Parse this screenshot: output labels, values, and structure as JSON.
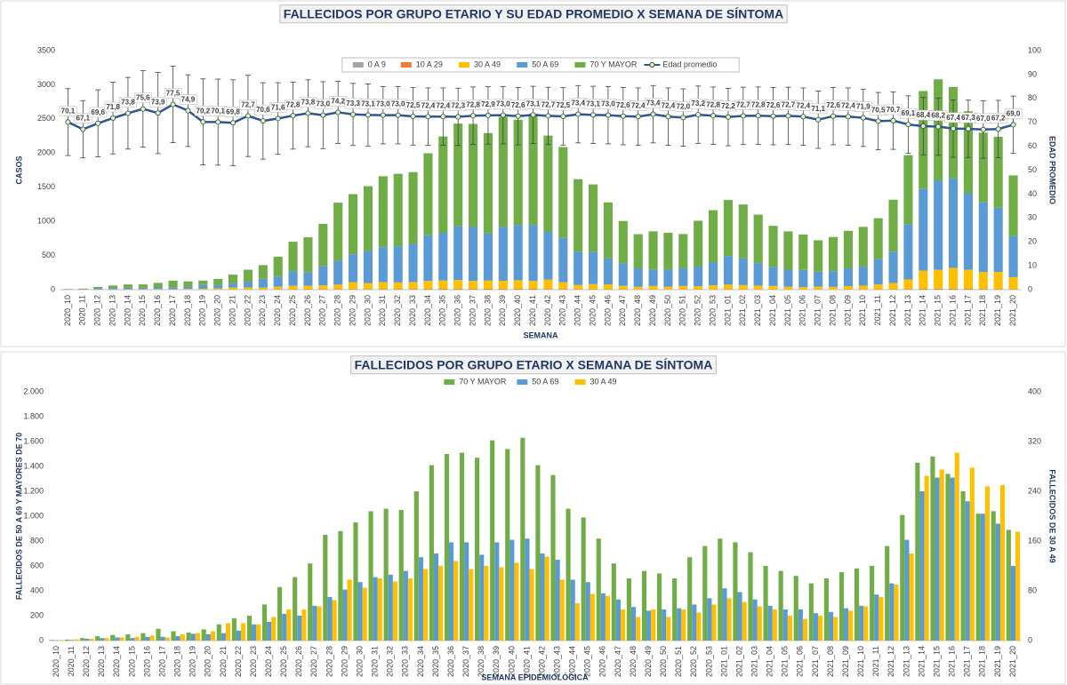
{
  "chart_data": [
    {
      "type": "bar",
      "stacked": true,
      "title": "FALLECIDOS POR GRUPO ETARIO Y SU EDAD PROMEDIO X SEMANA DE SÍNTOMA",
      "ylabel": "CASOS",
      "y2label": "EDAD PROMEDIO",
      "xlabel": "SEMANA",
      "legend": "top",
      "grid": false,
      "categories": [
        "2020_10",
        "2020_11",
        "2020_12",
        "2020_13",
        "2020_14",
        "2020_15",
        "2020_16",
        "2020_17",
        "2020_18",
        "2020_19",
        "2020_20",
        "2020_21",
        "2020_22",
        "2020_23",
        "2020_24",
        "2020_25",
        "2020_26",
        "2020_27",
        "2020_28",
        "2020_29",
        "2020_30",
        "2020_31",
        "2020_32",
        "2020_33",
        "2020_34",
        "2020_35",
        "2020_36",
        "2020_37",
        "2020_38",
        "2020_39",
        "2020_40",
        "2020_41",
        "2020_42",
        "2020_43",
        "2020_44",
        "2020_45",
        "2020_46",
        "2020_47",
        "2020_48",
        "2020_49",
        "2020_50",
        "2020_51",
        "2020_52",
        "2020_53",
        "2021_01",
        "2021_02",
        "2021_03",
        "2021_04",
        "2021_05",
        "2021_06",
        "2021_07",
        "2021_08",
        "2021_09",
        "2021_10",
        "2021_11",
        "2021_12",
        "2021_13",
        "2021_14",
        "2021_15",
        "2021_16",
        "2021_17",
        "2021_18",
        "2021_19",
        "2021_20"
      ],
      "ylim": [
        0,
        3500
      ],
      "yticks": [
        0,
        500,
        1000,
        1500,
        2000,
        2500,
        3000,
        3500
      ],
      "y2lim": [
        0,
        100
      ],
      "y2ticks": [
        0,
        10,
        20,
        30,
        40,
        50,
        60,
        70,
        80,
        90,
        100
      ],
      "series": [
        {
          "name": "0 A 9",
          "color": "#a5a5a5",
          "values": [
            0,
            0,
            0,
            0,
            0,
            0,
            0,
            0,
            0,
            0,
            0,
            0,
            1,
            0,
            1,
            1,
            1,
            1,
            1,
            2,
            1,
            1,
            1,
            1,
            1,
            1,
            2,
            1,
            1,
            1,
            1,
            1,
            1,
            1,
            1,
            0,
            0,
            1,
            0,
            0,
            1,
            0,
            0,
            1,
            0,
            0,
            0,
            0,
            0,
            0,
            1,
            0,
            0,
            0,
            1,
            1,
            1,
            2,
            2,
            2,
            1,
            1,
            1,
            1
          ]
        },
        {
          "name": "10 A 29",
          "color": "#ed7d31",
          "values": [
            0,
            0,
            1,
            1,
            1,
            1,
            1,
            1,
            1,
            1,
            2,
            2,
            3,
            3,
            4,
            6,
            6,
            7,
            8,
            9,
            9,
            10,
            10,
            10,
            11,
            12,
            12,
            11,
            12,
            11,
            12,
            12,
            10,
            9,
            7,
            6,
            5,
            4,
            4,
            4,
            3,
            4,
            4,
            4,
            5,
            5,
            4,
            4,
            3,
            3,
            3,
            3,
            4,
            4,
            5,
            6,
            9,
            12,
            13,
            14,
            12,
            10,
            9,
            7
          ]
        },
        {
          "name": "30 A 49",
          "color": "#ffc000",
          "values": [
            1,
            2,
            3,
            4,
            5,
            6,
            8,
            5,
            10,
            12,
            15,
            28,
            28,
            26,
            38,
            50,
            50,
            55,
            65,
            98,
            85,
            100,
            95,
            100,
            115,
            120,
            128,
            115,
            120,
            118,
            125,
            115,
            135,
            98,
            60,
            75,
            72,
            50,
            38,
            50,
            38,
            50,
            45,
            58,
            68,
            62,
            55,
            50,
            40,
            35,
            40,
            38,
            48,
            55,
            70,
            90,
            140,
            265,
            275,
            302,
            278,
            248,
            250,
            175
          ]
        },
        {
          "name": "50 A 69",
          "color": "#5b9bd5",
          "values": [
            3,
            5,
            15,
            20,
            25,
            20,
            30,
            30,
            35,
            55,
            50,
            60,
            80,
            130,
            150,
            215,
            200,
            280,
            350,
            410,
            470,
            510,
            530,
            560,
            670,
            700,
            790,
            790,
            690,
            790,
            810,
            820,
            700,
            650,
            490,
            470,
            380,
            330,
            270,
            240,
            250,
            260,
            290,
            340,
            420,
            390,
            330,
            280,
            250,
            250,
            220,
            230,
            260,
            280,
            370,
            460,
            810,
            1200,
            1310,
            1310,
            1120,
            1020,
            940,
            600
          ]
        },
        {
          "name": "70 Y MAYOR",
          "color": "#70ad47",
          "values": [
            5,
            8,
            20,
            35,
            45,
            50,
            60,
            95,
            75,
            65,
            90,
            130,
            180,
            200,
            290,
            430,
            510,
            620,
            850,
            880,
            950,
            1040,
            1060,
            1050,
            1200,
            1410,
            1500,
            1510,
            1470,
            1610,
            1540,
            1630,
            1410,
            1330,
            1060,
            990,
            820,
            620,
            500,
            560,
            540,
            500,
            670,
            760,
            820,
            790,
            710,
            600,
            560,
            520,
            460,
            500,
            550,
            580,
            600,
            760,
            1010,
            1430,
            1480,
            1340,
            1200,
            1020,
            1040,
            890
          ]
        },
        {
          "name": "Edad promedio",
          "type": "line",
          "axis": "y2",
          "color": "#2f5597",
          "values": [
            70.1,
            67.1,
            69.6,
            71.8,
            73.8,
            75.6,
            73.9,
            77.5,
            74.9,
            70.2,
            70.1,
            69.8,
            72.7,
            70.6,
            71.6,
            72.8,
            73.8,
            73.0,
            74.2,
            73.3,
            73.1,
            73.0,
            73.0,
            72.5,
            72.4,
            72.4,
            72.3,
            72.8,
            72.9,
            73.0,
            72.6,
            73.1,
            72.7,
            72.5,
            73.4,
            73.1,
            73.0,
            72.6,
            72.4,
            73.4,
            72.4,
            72.0,
            73.2,
            72.8,
            72.2,
            72.7,
            72.8,
            72.6,
            72.7,
            72.4,
            71.1,
            72.6,
            72.4,
            71.9,
            70.5,
            70.7,
            69.1,
            68.4,
            68.2,
            67.4,
            67.3,
            67.0,
            67.2,
            69.0
          ],
          "value_labels": [
            "70,1",
            "67,1",
            "69,6",
            "71,8",
            "73,8",
            "75,6",
            "73,9",
            "77,5",
            "74,9",
            "70,2",
            "70,1",
            "69,8",
            "72,7",
            "70,6",
            "71,6",
            "72,8",
            "73,8",
            "73,0",
            "74,2",
            "73,3",
            "73,1",
            "73,0",
            "73,0",
            "72,5",
            "72,4",
            "72,4",
            "72,3",
            "72,8",
            "72,9",
            "73,0",
            "72,6",
            "73,1",
            "72,7",
            "72,5",
            "73,4",
            "73,1",
            "73,0",
            "72,6",
            "72,4",
            "73,4",
            "72,4",
            "72,0",
            "73,2",
            "72,8",
            "72,2",
            "72,7",
            "72,8",
            "72,6",
            "72,7",
            "72,4",
            "71,1",
            "72,6",
            "72,4",
            "71,9",
            "70,5",
            "70,7",
            "69,1",
            "68,4",
            "68,2",
            "67,4",
            "67,3",
            "67,0",
            "67,2",
            "69,0"
          ],
          "errors": [
            14,
            12,
            14,
            15,
            15,
            16,
            17,
            16,
            15,
            18,
            18,
            18,
            17,
            16,
            15,
            14,
            14,
            14,
            13,
            13,
            13,
            12,
            12,
            12,
            12,
            12,
            12,
            12,
            12,
            12,
            12,
            12,
            12,
            12,
            12,
            12,
            12,
            12,
            12,
            12,
            12,
            12,
            12,
            12,
            12,
            12,
            12,
            12,
            12,
            12,
            12,
            12,
            12,
            12,
            12,
            12,
            12,
            12,
            12,
            12,
            12,
            12,
            12,
            12
          ]
        }
      ]
    },
    {
      "type": "bar",
      "stacked": false,
      "title": "FALLECIDOS POR GRUPO ETARIO X SEMANA DE SÍNTOMA",
      "ylabel": "FALLECIDOS DE 50 A 69 Y MAYORES DE 70",
      "y2label": "FALLECIDOS DE 30 A 49",
      "xlabel": "SEMANA EPIDEMIOLÓGICA",
      "legend": "top",
      "grid": false,
      "categories": [
        "2020_10",
        "2020_11",
        "2020_12",
        "2020_13",
        "2020_14",
        "2020_15",
        "2020_16",
        "2020_17",
        "2020_18",
        "2020_19",
        "2020_20",
        "2020_21",
        "2020_22",
        "2020_23",
        "2020_24",
        "2020_25",
        "2020_26",
        "2020_27",
        "2020_28",
        "2020_29",
        "2020_30",
        "2020_31",
        "2020_32",
        "2020_33",
        "2020_34",
        "2020_35",
        "2020_36",
        "2020_37",
        "2020_38",
        "2020_39",
        "2020_40",
        "2020_41",
        "2020_42",
        "2020_43",
        "2020_44",
        "2020_45",
        "2020_46",
        "2020_47",
        "2020_48",
        "2020_49",
        "2020_50",
        "2020_51",
        "2020_52",
        "2020_53",
        "2021_01",
        "2021_02",
        "2021_03",
        "2021_04",
        "2021_05",
        "2021_06",
        "2021_07",
        "2021_08",
        "2021_09",
        "2021_10",
        "2021_11",
        "2021_12",
        "2021_13",
        "2021_14",
        "2021_15",
        "2021_16",
        "2021_17",
        "2021_18",
        "2021_19",
        "2021_20"
      ],
      "ylim": [
        0,
        2000
      ],
      "yticks": [
        0,
        200,
        400,
        600,
        800,
        {
          "value": 1000,
          "label": "1.000"
        },
        {
          "value": 1200,
          "label": "1.200"
        },
        {
          "value": 1400,
          "label": "1.400"
        },
        {
          "value": 1600,
          "label": "1.600"
        },
        {
          "value": 1800,
          "label": "1.800"
        },
        {
          "value": 2000,
          "label": "2.000"
        }
      ],
      "y2lim": [
        0,
        400
      ],
      "y2ticks": [
        0,
        80,
        160,
        240,
        320,
        400
      ],
      "series": [
        {
          "name": "70 Y MAYOR",
          "color": "#70ad47",
          "values": [
            5,
            8,
            20,
            35,
            45,
            50,
            60,
            95,
            75,
            65,
            90,
            130,
            180,
            200,
            290,
            430,
            510,
            620,
            850,
            880,
            950,
            1040,
            1060,
            1050,
            1200,
            1410,
            1500,
            1510,
            1470,
            1610,
            1540,
            1630,
            1410,
            1330,
            1060,
            990,
            820,
            620,
            500,
            560,
            540,
            500,
            670,
            760,
            820,
            790,
            710,
            600,
            560,
            520,
            460,
            500,
            550,
            580,
            600,
            760,
            1010,
            1430,
            1480,
            1340,
            1200,
            1020,
            1040,
            890
          ]
        },
        {
          "name": "50 A 69",
          "color": "#5b9bd5",
          "values": [
            3,
            5,
            15,
            20,
            25,
            20,
            30,
            30,
            35,
            55,
            50,
            60,
            80,
            130,
            150,
            215,
            200,
            280,
            350,
            410,
            470,
            510,
            530,
            560,
            670,
            700,
            790,
            790,
            690,
            790,
            810,
            820,
            700,
            650,
            490,
            470,
            380,
            330,
            270,
            240,
            250,
            260,
            290,
            340,
            420,
            390,
            330,
            280,
            250,
            250,
            220,
            230,
            260,
            280,
            370,
            460,
            810,
            1200,
            1310,
            1310,
            1120,
            1020,
            940,
            600
          ]
        },
        {
          "name": "30 A 49",
          "color": "#ffc000",
          "axis": "y2",
          "values": [
            1,
            2,
            3,
            4,
            5,
            6,
            8,
            5,
            10,
            12,
            15,
            28,
            28,
            26,
            38,
            50,
            50,
            55,
            65,
            98,
            85,
            100,
            95,
            100,
            115,
            120,
            128,
            115,
            120,
            118,
            125,
            115,
            135,
            98,
            60,
            75,
            72,
            50,
            38,
            50,
            38,
            50,
            45,
            58,
            68,
            62,
            55,
            50,
            40,
            35,
            40,
            38,
            48,
            55,
            70,
            90,
            140,
            265,
            275,
            302,
            278,
            248,
            250,
            175
          ]
        }
      ]
    }
  ]
}
